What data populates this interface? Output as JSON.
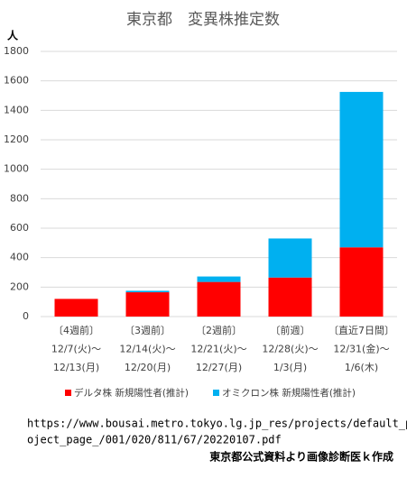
{
  "chart_data": {
    "type": "stacked-bar",
    "title": "東京都　変異株推定数",
    "y_label": "人",
    "categories": [
      [
        "〔4週前〕",
        "12/7(火)〜",
        "12/13(月)"
      ],
      [
        "〔3週前〕",
        "12/14(火)〜",
        "12/20(月)"
      ],
      [
        "〔2週前〕",
        "12/21(火)〜",
        "12/27(月)"
      ],
      [
        "〔前週〕",
        "12/28(火)〜",
        "1/3(月)"
      ],
      [
        "〔直近7日間〕",
        "12/31(金)〜",
        "1/6(木)"
      ]
    ],
    "series": [
      {
        "name": "デルタ株 新規陽性者(推計)",
        "color": "#ff0000",
        "values": [
          120,
          165,
          235,
          265,
          470
        ]
      },
      {
        "name": "オミクロン株 新規陽性者(推計)",
        "color": "#00b0f0",
        "values": [
          0,
          10,
          37,
          265,
          1055
        ]
      }
    ],
    "ylim": [
      0,
      1800
    ],
    "yticks": [
      0,
      200,
      400,
      600,
      800,
      1000,
      1200,
      1400,
      1600,
      1800
    ],
    "grid": true,
    "source_url": [
      "https://www.bousai.metro.tokyo.lg.jp_res/projects/default_pr",
      "oject_page_/001/020/811/67/20220107.pdf"
    ],
    "credit": "東京都公式資料より画像診断医ｋ作成"
  }
}
